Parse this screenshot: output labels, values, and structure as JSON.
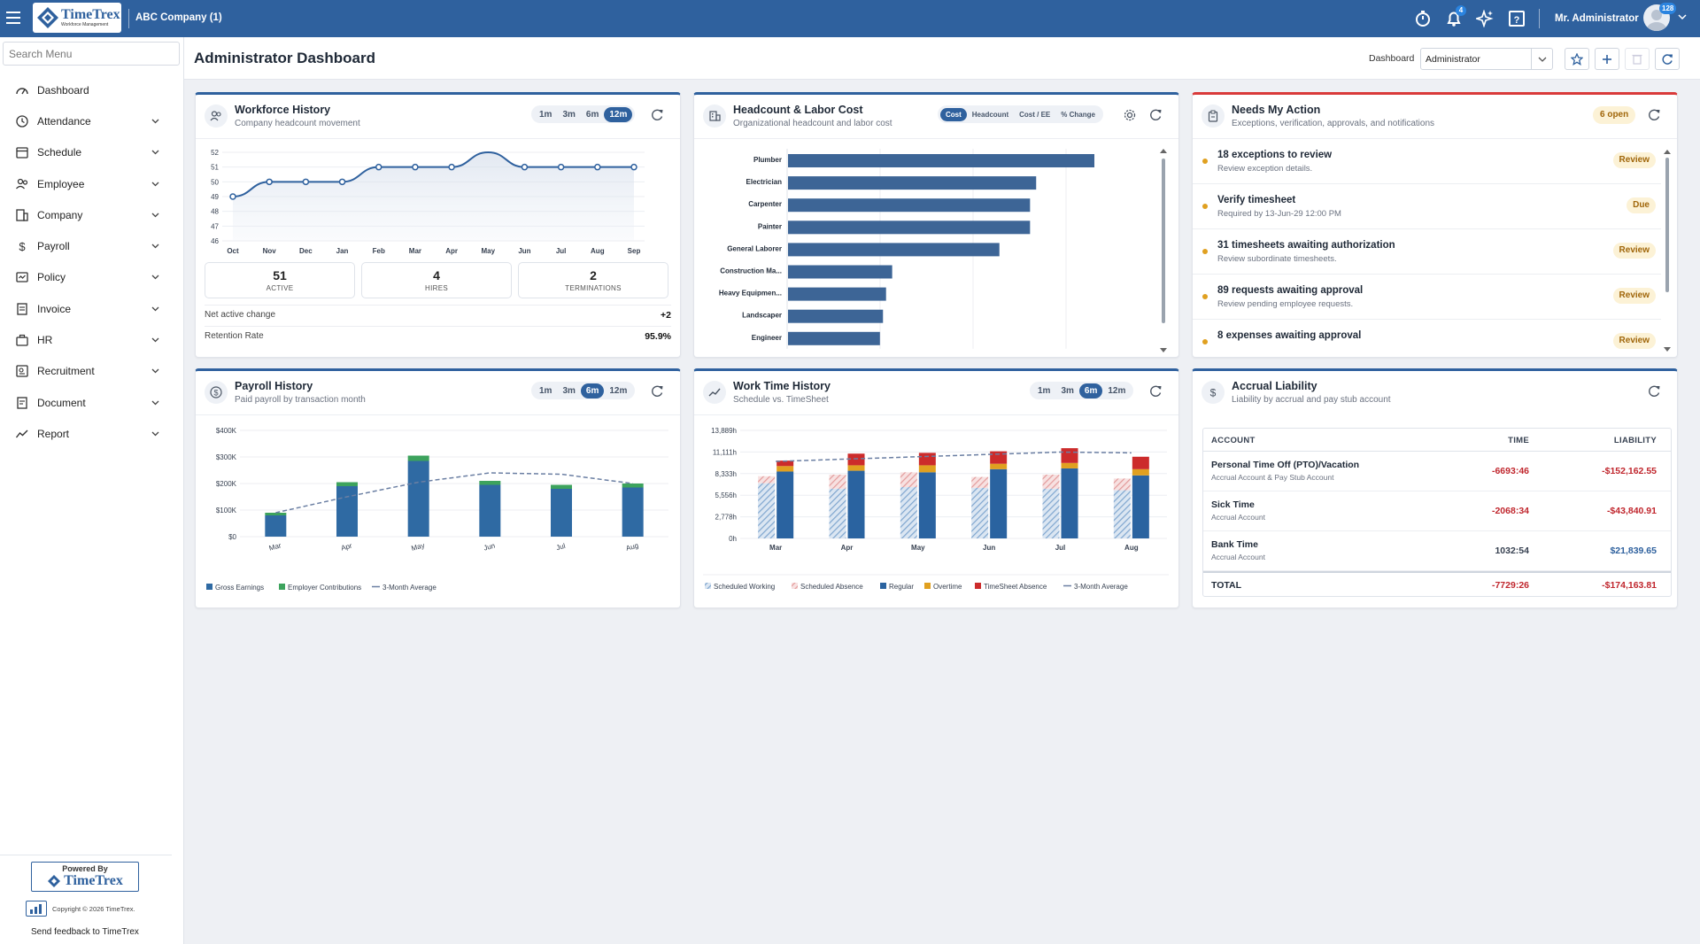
{
  "topbar": {
    "brand_name": "TimeTrex",
    "brand_tag": "Workforce Management",
    "company": "ABC Company (1)",
    "user": "Mr. Administrator",
    "notif_count": "4",
    "avatar_badge": "128"
  },
  "sidebar": {
    "search_placeholder": "Search Menu",
    "items": [
      {
        "label": "Dashboard",
        "icon": "dashboard-icon",
        "expand": false
      },
      {
        "label": "Attendance",
        "icon": "clock-icon",
        "expand": true
      },
      {
        "label": "Schedule",
        "icon": "calendar-icon",
        "expand": true
      },
      {
        "label": "Employee",
        "icon": "users-icon",
        "expand": true
      },
      {
        "label": "Company",
        "icon": "building-icon",
        "expand": true
      },
      {
        "label": "Payroll",
        "icon": "dollar-icon",
        "expand": true
      },
      {
        "label": "Policy",
        "icon": "policy-icon",
        "expand": true
      },
      {
        "label": "Invoice",
        "icon": "invoice-icon",
        "expand": true
      },
      {
        "label": "HR",
        "icon": "briefcase-icon",
        "expand": true
      },
      {
        "label": "Recruitment",
        "icon": "recruitment-icon",
        "expand": true
      },
      {
        "label": "Document",
        "icon": "document-icon",
        "expand": true
      },
      {
        "label": "Report",
        "icon": "report-icon",
        "expand": true
      }
    ],
    "powered_by": "Powered By",
    "powered_brand": "TimeTrex",
    "copyright": "Copyright © 2026 TimeTrex.",
    "feedback": "Send feedback to TimeTrex"
  },
  "header": {
    "title": "Administrator Dashboard",
    "dash_label": "Dashboard",
    "dash_value": "Administrator"
  },
  "workforce": {
    "title": "Workforce History",
    "subtitle": "Company headcount movement",
    "ranges": [
      "1m",
      "3m",
      "6m",
      "12m"
    ],
    "active_range": "12m",
    "stats": [
      {
        "value": "51",
        "label": "ACTIVE"
      },
      {
        "value": "4",
        "label": "HIRES"
      },
      {
        "value": "2",
        "label": "TERMINATIONS"
      }
    ],
    "net_label": "Net active change",
    "net_value": "+2",
    "ret_label": "Retention Rate",
    "ret_value": "95.9%"
  },
  "headcount": {
    "title": "Headcount & Labor Cost",
    "subtitle": "Organizational headcount and labor cost",
    "tabs": [
      "Cost",
      "Headcount",
      "Cost / EE",
      "% Change"
    ],
    "active_tab": "Cost"
  },
  "actions": {
    "title": "Needs My Action",
    "subtitle": "Exceptions, verification, approvals, and notifications",
    "badge": "6 open",
    "items": [
      {
        "title": "18 exceptions to review",
        "sub": "Review exception details.",
        "btn": "Review"
      },
      {
        "title": "Verify timesheet",
        "sub": "Required by 13-Jun-29 12:00 PM",
        "btn": "Due"
      },
      {
        "title": "31 timesheets awaiting authorization",
        "sub": "Review subordinate timesheets.",
        "btn": "Review"
      },
      {
        "title": "89 requests awaiting approval",
        "sub": "Review pending employee requests.",
        "btn": "Review"
      },
      {
        "title": "8 expenses awaiting approval",
        "sub": "",
        "btn": "Review"
      }
    ]
  },
  "payroll": {
    "title": "Payroll History",
    "subtitle": "Paid payroll by transaction month",
    "ranges": [
      "1m",
      "3m",
      "6m",
      "12m"
    ],
    "active_range": "6m"
  },
  "worktime": {
    "title": "Work Time History",
    "subtitle": "Schedule vs. TimeSheet",
    "ranges": [
      "1m",
      "3m",
      "6m",
      "12m"
    ],
    "active_range": "6m"
  },
  "accrual": {
    "title": "Accrual Liability",
    "subtitle": "Liability by accrual and pay stub account",
    "cols": [
      "ACCOUNT",
      "TIME",
      "LIABILITY"
    ],
    "rows": [
      {
        "name": "Personal Time Off (PTO)/Vacation",
        "sub": "Accrual Account & Pay Stub Account",
        "time": "-6693:46",
        "liab": "-$152,162.55",
        "neg": true
      },
      {
        "name": "Sick Time",
        "sub": "Accrual Account",
        "time": "-2068:34",
        "liab": "-$43,840.91",
        "neg": true
      },
      {
        "name": "Bank Time",
        "sub": "Accrual Account",
        "time": "1032:54",
        "liab": "$21,839.65",
        "neg": false
      }
    ],
    "total": {
      "name": "TOTAL",
      "time": "-7729:26",
      "liab": "-$174,163.81"
    }
  },
  "chart_data": [
    {
      "type": "line",
      "id": "workforce",
      "x": [
        "Oct",
        "Nov",
        "Dec",
        "Jan",
        "Feb",
        "Mar",
        "Apr",
        "May",
        "Jun",
        "Jul",
        "Aug",
        "Sep"
      ],
      "series": [
        {
          "values": [
            49,
            50,
            50,
            50,
            51,
            51,
            51,
            52,
            51,
            51,
            51,
            51
          ]
        }
      ],
      "y_ticks": [
        46,
        47,
        48,
        49,
        50,
        51,
        52
      ],
      "ylim": [
        46,
        52
      ],
      "color": "#2f619e"
    },
    {
      "type": "bar",
      "id": "headcount",
      "orientation": "horizontal",
      "categories": [
        "Plumber",
        "Electrician",
        "Carpenter",
        "Painter",
        "General Laborer",
        "Construction Ma...",
        "Heavy Equipmen...",
        "Landscaper",
        "Engineer"
      ],
      "values": [
        100,
        81,
        79,
        79,
        69,
        34,
        32,
        31,
        30
      ],
      "color": "#3d6596"
    },
    {
      "type": "bar",
      "id": "payroll",
      "stacked": true,
      "categories": [
        "Mar",
        "Apr",
        "May",
        "Jun",
        "Jul",
        "Aug"
      ],
      "y_ticks": [
        "$0",
        "$100K",
        "$200K",
        "$300K",
        "$400K"
      ],
      "ylim": [
        0,
        400000
      ],
      "series": [
        {
          "name": "Gross Earnings",
          "values": [
            80000,
            190000,
            285000,
            195000,
            180000,
            185000
          ],
          "color": "#2f6aa3"
        },
        {
          "name": "Employer Contributions",
          "values": [
            10000,
            15000,
            20000,
            15000,
            15000,
            15000
          ],
          "color": "#3da35d"
        }
      ],
      "line": {
        "name": "3-Month Average",
        "values": [
          90000,
          150000,
          205000,
          240000,
          235000,
          200000
        ],
        "color": "#6b7fa3"
      }
    },
    {
      "type": "bar",
      "id": "worktime",
      "stacked": true,
      "categories": [
        "Mar",
        "Apr",
        "May",
        "Jun",
        "Jul",
        "Aug"
      ],
      "y_ticks": [
        "0h",
        "2,778h",
        "5,556h",
        "8,333h",
        "11,111h",
        "13,889h"
      ],
      "ylim": [
        0,
        13889
      ],
      "scheduled": [
        {
          "name": "Scheduled Working",
          "values": [
            7100,
            6400,
            6600,
            6500,
            6400,
            6200
          ],
          "color": "#8fb3d6"
        },
        {
          "name": "Scheduled Absence",
          "values": [
            900,
            1800,
            1900,
            1400,
            1800,
            1500
          ],
          "color": "#e6a3a3"
        }
      ],
      "actual": [
        {
          "name": "Regular",
          "values": [
            8600,
            8700,
            8500,
            8900,
            9000,
            8100
          ],
          "color": "#2a63a0"
        },
        {
          "name": "Overtime",
          "values": [
            700,
            700,
            900,
            700,
            700,
            800
          ],
          "color": "#e0a020"
        },
        {
          "name": "TimeSheet Absence",
          "values": [
            700,
            1500,
            1600,
            1600,
            1900,
            1600
          ],
          "color": "#cc2b2b"
        }
      ],
      "line": {
        "name": "3-Month Average",
        "values": [
          9900,
          10200,
          10500,
          10800,
          11100,
          11000
        ],
        "color": "#6b7fa3"
      }
    }
  ]
}
